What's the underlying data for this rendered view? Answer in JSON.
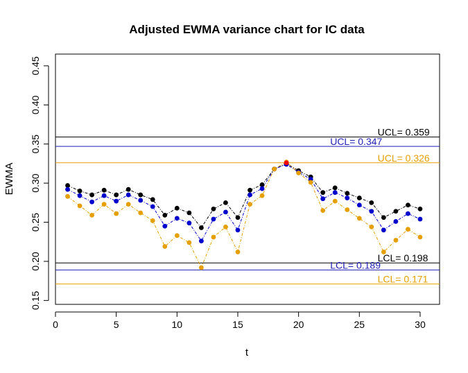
{
  "chart_data": {
    "type": "line",
    "title": "Adjusted EWMA variance chart for IC data",
    "xlabel": "t",
    "ylabel": "EWMA",
    "xlim": [
      0,
      31.6
    ],
    "ylim": [
      0.145,
      0.465
    ],
    "x_ticks": [
      0,
      5,
      10,
      15,
      20,
      25,
      30
    ],
    "y_ticks": [
      0.15,
      0.2,
      0.25,
      0.3,
      0.35,
      0.4,
      0.45
    ],
    "y_tick_labels": [
      "0.15",
      "0.20",
      "0.25",
      "0.30",
      "0.35",
      "0.40",
      "0.45"
    ],
    "grid": false,
    "x": [
      1,
      2,
      3,
      4,
      5,
      6,
      7,
      8,
      9,
      10,
      11,
      12,
      13,
      14,
      15,
      16,
      17,
      18,
      19,
      20,
      21,
      22,
      23,
      24,
      25,
      26,
      27,
      28,
      29,
      30
    ],
    "series": [
      {
        "color": "#000000",
        "values": [
          0.297,
          0.29,
          0.285,
          0.291,
          0.285,
          0.292,
          0.285,
          0.279,
          0.259,
          0.268,
          0.262,
          0.243,
          0.267,
          0.275,
          0.256,
          0.291,
          0.298,
          0.318,
          0.325,
          0.316,
          0.308,
          0.288,
          0.294,
          0.287,
          0.281,
          0.275,
          0.256,
          0.264,
          0.272,
          0.267
        ]
      },
      {
        "color": "#0000cc",
        "values": [
          0.292,
          0.284,
          0.276,
          0.284,
          0.277,
          0.285,
          0.278,
          0.27,
          0.245,
          0.255,
          0.249,
          0.226,
          0.254,
          0.263,
          0.24,
          0.285,
          0.293,
          0.318,
          0.324,
          0.314,
          0.305,
          0.28,
          0.288,
          0.281,
          0.272,
          0.264,
          0.24,
          0.251,
          0.261,
          0.254
        ]
      },
      {
        "color": "#e69f00",
        "values": [
          0.283,
          0.271,
          0.259,
          0.273,
          0.261,
          0.273,
          0.262,
          0.252,
          0.219,
          0.233,
          0.224,
          0.192,
          0.231,
          0.244,
          0.212,
          0.273,
          0.284,
          0.318,
          0.327,
          0.313,
          0.301,
          0.265,
          0.277,
          0.266,
          0.255,
          0.244,
          0.212,
          0.227,
          0.241,
          0.231
        ]
      }
    ],
    "highlight_point": {
      "x": 19,
      "y": 0.326,
      "color": "#ff0000"
    },
    "limits": [
      {
        "value": 0.359,
        "label": "UCL= 0.359",
        "color": "#000000"
      },
      {
        "value": 0.347,
        "label": "UCL= 0.347",
        "color": "#1f1fb4"
      },
      {
        "value": 0.326,
        "label": "UCL= 0.326",
        "color": "#e69f00"
      },
      {
        "value": 0.198,
        "label": "LCL= 0.198",
        "color": "#000000"
      },
      {
        "value": 0.189,
        "label": "LCL= 0.189",
        "color": "#1f1fb4"
      },
      {
        "value": 0.171,
        "label": "LCL= 0.171",
        "color": "#e69f00"
      }
    ],
    "limit_label_x": [
      26.5,
      22.6,
      26.5,
      26.5,
      22.6,
      26.5
    ]
  }
}
